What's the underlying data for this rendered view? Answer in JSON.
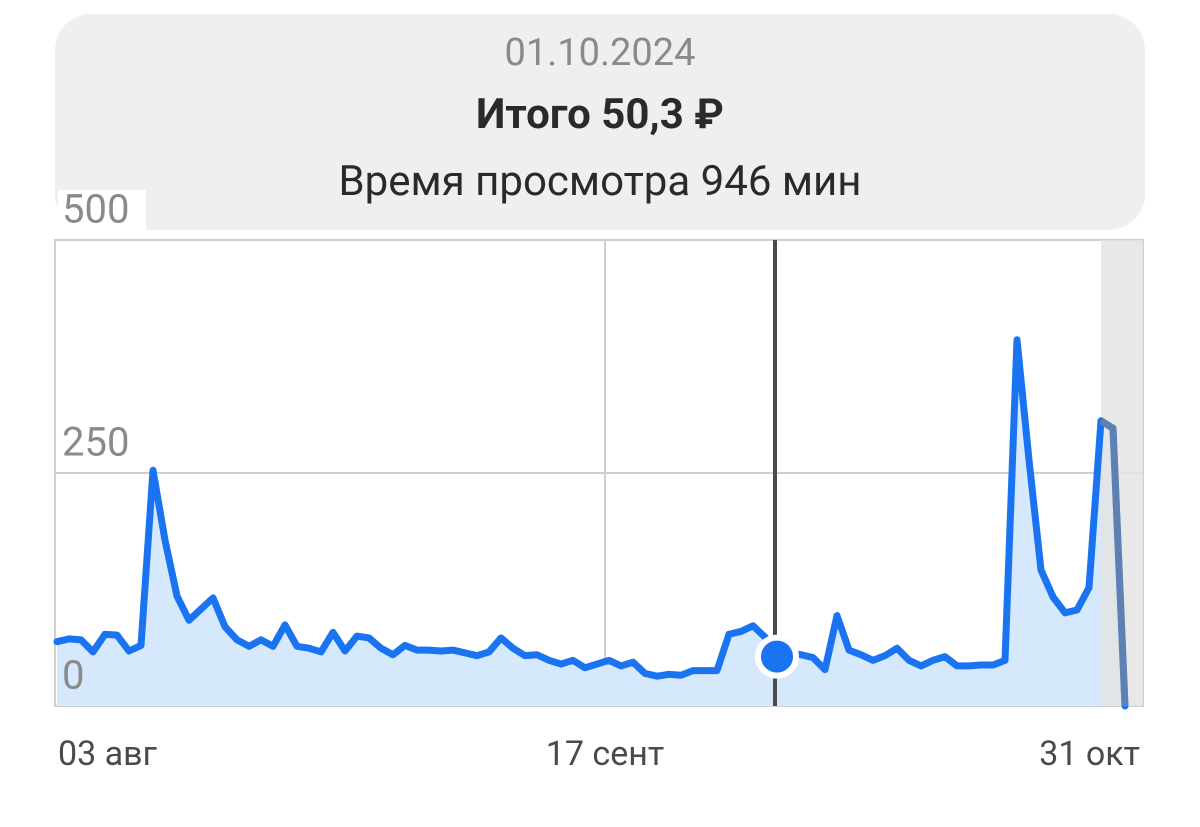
{
  "chart_data": {
    "type": "area",
    "date": "01.10.2024",
    "title": "Итого 50,3 ₽",
    "subtitle": "Время просмотра 946 мин",
    "categories": [
      "03 авг",
      null,
      null,
      null,
      null,
      null,
      null,
      null,
      null,
      null,
      null,
      null,
      null,
      null,
      null,
      null,
      null,
      null,
      null,
      null,
      null,
      null,
      null,
      null,
      null,
      null,
      null,
      null,
      null,
      null,
      null,
      null,
      null,
      null,
      null,
      null,
      null,
      null,
      null,
      null,
      null,
      null,
      null,
      null,
      null,
      "17 сент",
      null,
      null,
      null,
      null,
      null,
      null,
      null,
      null,
      null,
      null,
      null,
      null,
      null,
      null,
      null,
      null,
      null,
      null,
      null,
      null,
      null,
      null,
      null,
      null,
      null,
      null,
      null,
      null,
      null,
      null,
      null,
      null,
      null,
      null,
      null,
      null,
      null,
      null,
      null,
      null,
      null,
      null,
      null,
      "31 окт"
    ],
    "values": [
      69,
      72,
      71,
      58,
      77,
      76,
      59,
      65,
      253,
      178,
      118,
      92,
      104,
      116,
      85,
      71,
      64,
      71,
      64,
      87,
      64,
      62,
      58,
      79,
      59,
      75,
      73,
      62,
      55,
      65,
      60,
      60,
      59,
      60,
      57,
      54,
      58,
      73,
      62,
      54,
      55,
      49,
      45,
      49,
      41,
      45,
      49,
      43,
      47,
      35,
      32,
      34,
      33,
      38,
      38,
      38,
      77,
      80,
      86,
      74,
      53,
      57,
      55,
      52,
      39,
      97,
      60,
      55,
      49,
      54,
      62,
      49,
      43,
      49,
      53,
      43,
      43,
      44,
      44,
      49,
      393,
      264,
      146,
      117,
      100,
      103,
      127,
      306,
      298,
      0
    ],
    "color": "#1a73f0",
    "ylim": [
      0,
      500
    ],
    "yticks": [
      0,
      250,
      500
    ],
    "grid": true
  }
}
